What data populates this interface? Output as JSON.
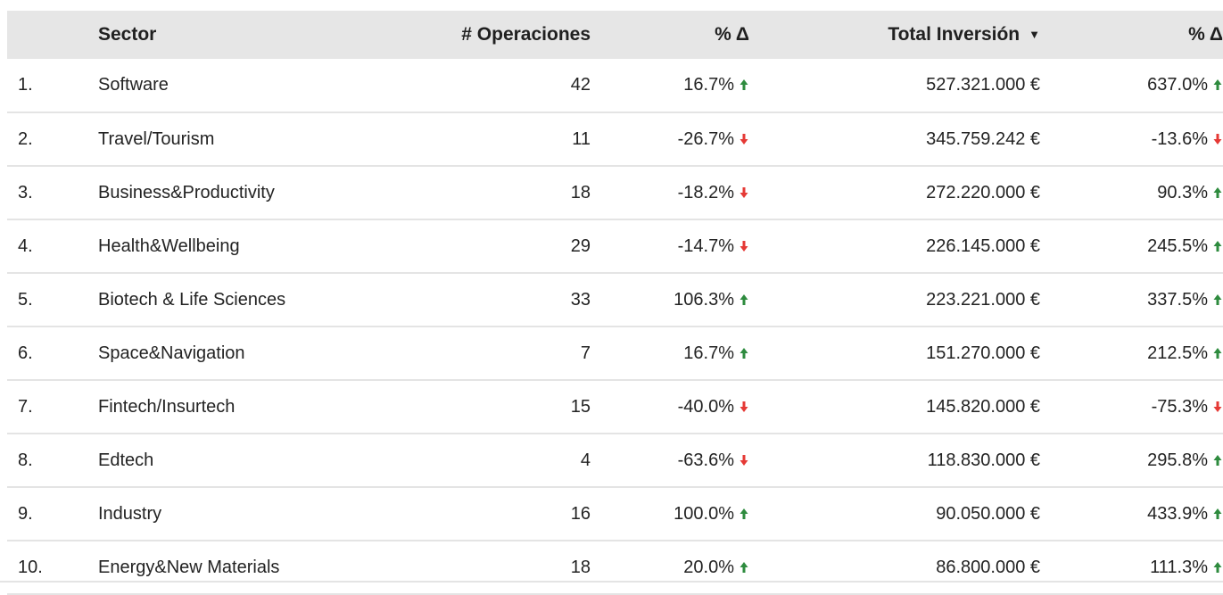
{
  "chart_data": {
    "type": "table",
    "columns": [
      "",
      "Sector",
      "# Operaciones",
      "% Δ",
      "Total Inversión",
      "% Δ"
    ],
    "sort_indicator": "▼",
    "rows": [
      {
        "rank": "1.",
        "sector": "Software",
        "operaciones": "42",
        "ops_delta": "16.7%",
        "ops_dir": "up",
        "inversion": "527.321.000 €",
        "inv_delta": "637.0%",
        "inv_dir": "up"
      },
      {
        "rank": "2.",
        "sector": "Travel/Tourism",
        "operaciones": "11",
        "ops_delta": "-26.7%",
        "ops_dir": "down",
        "inversion": "345.759.242 €",
        "inv_delta": "-13.6%",
        "inv_dir": "down"
      },
      {
        "rank": "3.",
        "sector": "Business&Productivity",
        "operaciones": "18",
        "ops_delta": "-18.2%",
        "ops_dir": "down",
        "inversion": "272.220.000 €",
        "inv_delta": "90.3%",
        "inv_dir": "up"
      },
      {
        "rank": "4.",
        "sector": "Health&Wellbeing",
        "operaciones": "29",
        "ops_delta": "-14.7%",
        "ops_dir": "down",
        "inversion": "226.145.000 €",
        "inv_delta": "245.5%",
        "inv_dir": "up"
      },
      {
        "rank": "5.",
        "sector": "Biotech & Life Sciences",
        "operaciones": "33",
        "ops_delta": "106.3%",
        "ops_dir": "up",
        "inversion": "223.221.000 €",
        "inv_delta": "337.5%",
        "inv_dir": "up"
      },
      {
        "rank": "6.",
        "sector": "Space&Navigation",
        "operaciones": "7",
        "ops_delta": "16.7%",
        "ops_dir": "up",
        "inversion": "151.270.000 €",
        "inv_delta": "212.5%",
        "inv_dir": "up"
      },
      {
        "rank": "7.",
        "sector": "Fintech/Insurtech",
        "operaciones": "15",
        "ops_delta": "-40.0%",
        "ops_dir": "down",
        "inversion": "145.820.000 €",
        "inv_delta": "-75.3%",
        "inv_dir": "down"
      },
      {
        "rank": "8.",
        "sector": "Edtech",
        "operaciones": "4",
        "ops_delta": "-63.6%",
        "ops_dir": "down",
        "inversion": "118.830.000 €",
        "inv_delta": "295.8%",
        "inv_dir": "up"
      },
      {
        "rank": "9.",
        "sector": "Industry",
        "operaciones": "16",
        "ops_delta": "100.0%",
        "ops_dir": "up",
        "inversion": "90.050.000 €",
        "inv_delta": "433.9%",
        "inv_dir": "up"
      },
      {
        "rank": "10.",
        "sector": "Energy&New Materials",
        "operaciones": "18",
        "ops_delta": "20.0%",
        "ops_dir": "up",
        "inversion": "86.800.000 €",
        "inv_delta": "111.3%",
        "inv_dir": "up"
      }
    ]
  },
  "colors": {
    "up": "#2e8b3e",
    "down": "#e53935",
    "header_bg": "#e6e6e6",
    "row_border": "#e4e4e4"
  }
}
